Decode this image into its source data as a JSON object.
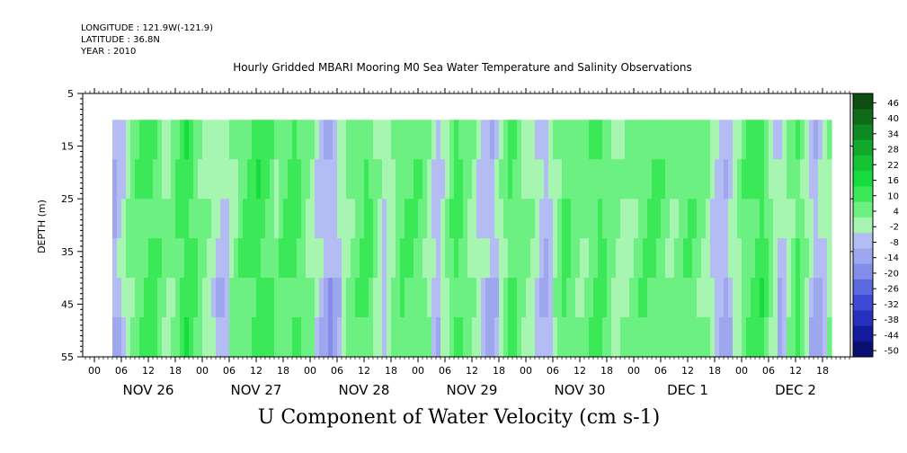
{
  "meta": {
    "longitude": "LONGITUDE : 121.9W(-121.9)",
    "latitude": "LATITUDE : 36.8N",
    "year": "YEAR : 2010"
  },
  "chart_data": {
    "type": "heatmap",
    "title": "Hourly Gridded MBARI Mooring M0 Sea Water Temperature and Salinity Observations",
    "bottom_title": "U Component of Water Velocity (cm s-1)",
    "ylabel": "DEPTH (m)",
    "ylim": [
      5,
      55
    ],
    "y_inverted": true,
    "y_ticks": [
      5,
      15,
      25,
      35,
      45,
      55
    ],
    "data_depth_range": [
      10,
      55
    ],
    "x_hour_ticks": [
      "00",
      "06",
      "12",
      "18",
      "00",
      "06",
      "12",
      "18",
      "00",
      "06",
      "12",
      "18",
      "00",
      "06",
      "12",
      "18",
      "00",
      "06",
      "12",
      "18",
      "00",
      "06",
      "12",
      "18",
      "00",
      "06",
      "12",
      "18"
    ],
    "x_day_labels": [
      "NOV 26",
      "NOV 27",
      "NOV 28",
      "NOV 29",
      "NOV 30",
      "DEC  1",
      "DEC  2"
    ],
    "colorbar_levels": [
      46,
      40,
      34,
      28,
      22,
      16,
      10,
      4,
      -2,
      -8,
      -14,
      -20,
      -26,
      -32,
      -38,
      -44,
      -50
    ],
    "colorbar_colors": [
      "#0c4d12",
      "#0e6b1a",
      "#0f8a22",
      "#12a82b",
      "#14c434",
      "#17dc3d",
      "#3be858",
      "#6df082",
      "#a6f5b0",
      "#b4bcf4",
      "#9ea6ee",
      "#848ee8",
      "#5b68e0",
      "#3d4ad4",
      "#2631c0",
      "#141c9c",
      "#0a0f70"
    ],
    "x_start_hour": 4,
    "x_end_hour": 164,
    "column_u_profiles": [
      {
        "hour": 4,
        "u": -6
      },
      {
        "hour": 8,
        "u": 6
      },
      {
        "hour": 12,
        "u": 12
      },
      {
        "hour": 16,
        "u": 4
      },
      {
        "hour": 20,
        "u": 14
      },
      {
        "hour": 24,
        "u": 4
      },
      {
        "hour": 28,
        "u": -4
      },
      {
        "hour": 32,
        "u": 8
      },
      {
        "hour": 36,
        "u": 14
      },
      {
        "hour": 40,
        "u": 6
      },
      {
        "hour": 44,
        "u": 12
      },
      {
        "hour": 48,
        "u": 2
      },
      {
        "hour": 52,
        "u": -8
      },
      {
        "hour": 56,
        "u": 4
      },
      {
        "hour": 60,
        "u": 12
      },
      {
        "hour": 64,
        "u": -2
      },
      {
        "hour": 68,
        "u": 10
      },
      {
        "hour": 72,
        "u": 8
      },
      {
        "hour": 76,
        "u": -4
      },
      {
        "hour": 80,
        "u": 12
      },
      {
        "hour": 84,
        "u": 2
      },
      {
        "hour": 88,
        "u": -6
      },
      {
        "hour": 92,
        "u": 10
      },
      {
        "hour": 96,
        "u": 4
      },
      {
        "hour": 100,
        "u": -6
      },
      {
        "hour": 104,
        "u": 10
      },
      {
        "hour": 108,
        "u": 4
      },
      {
        "hour": 112,
        "u": 12
      },
      {
        "hour": 116,
        "u": 2
      },
      {
        "hour": 120,
        "u": 6
      },
      {
        "hour": 124,
        "u": 12
      },
      {
        "hour": 128,
        "u": 4
      },
      {
        "hour": 132,
        "u": 10
      },
      {
        "hour": 136,
        "u": 2
      },
      {
        "hour": 140,
        "u": -6
      },
      {
        "hour": 144,
        "u": 8
      },
      {
        "hour": 148,
        "u": 14
      },
      {
        "hour": 152,
        "u": -4
      },
      {
        "hour": 156,
        "u": 10
      },
      {
        "hour": 160,
        "u": -6
      },
      {
        "hour": 164,
        "u": 4
      }
    ]
  }
}
